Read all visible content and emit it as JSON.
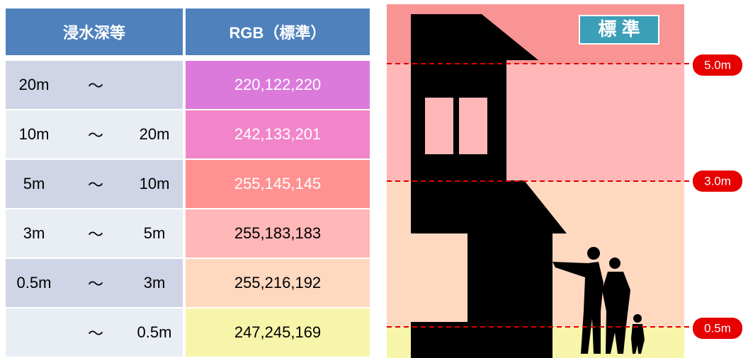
{
  "table": {
    "header": [
      "浸水深等",
      "RGB（標準）"
    ],
    "rows": [
      {
        "from": "20m",
        "sep": "～",
        "rgb": "220,122,220",
        "text_color": "#ffffff"
      },
      {
        "from": "10m",
        "sep": "～",
        "to": "20m",
        "rgb": "242,133,201",
        "text_color": "#ffffff"
      },
      {
        "from": "5m",
        "sep": "～",
        "to": "10m",
        "rgb": "255,145,145",
        "text_color": "#ffffff"
      },
      {
        "from": "3m",
        "sep": "～",
        "to": "5m",
        "rgb": "255,183,183",
        "text_color": "#000000"
      },
      {
        "from": "0.5m",
        "sep": "～",
        "to": "3m",
        "rgb": "255,216,192",
        "text_color": "#000000"
      },
      {
        "sep": "～",
        "to": "0.5m",
        "rgb": "247,245,169",
        "text_color": "#000000"
      }
    ]
  },
  "diagram": {
    "badge": "標 準",
    "levels": [
      "5.0m",
      "3.0m",
      "0.5m"
    ]
  }
}
